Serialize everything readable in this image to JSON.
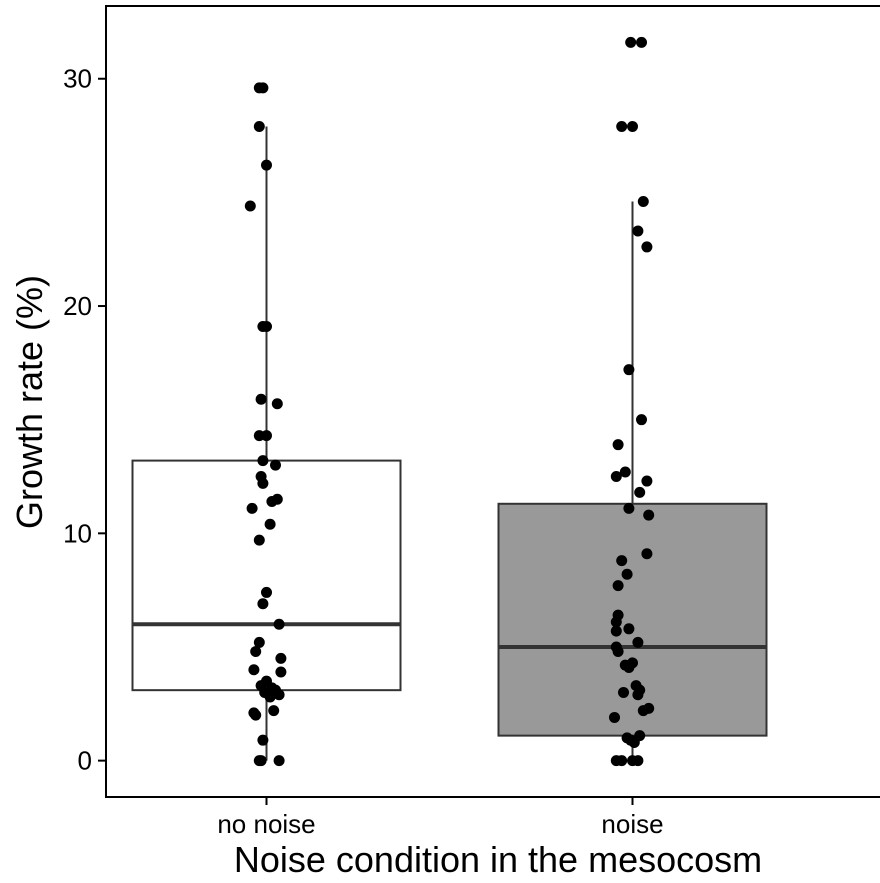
{
  "chart_data": {
    "type": "boxplot",
    "xlabel": "Noise condition in the mesocosm",
    "ylabel": "Growth rate (%)",
    "ylim": [
      -1.6,
      33.2
    ],
    "yticks": [
      0,
      10,
      20,
      30
    ],
    "ytick_labels": [
      "0",
      "10",
      "20",
      "30"
    ],
    "grid": false,
    "categories": [
      "no noise",
      "noise"
    ],
    "colors": {
      "no_noise_box_fill": "#ffffff",
      "noise_box_fill": "#999999",
      "box_stroke": "#333333",
      "point": "#000000"
    },
    "boxes": [
      {
        "category": "no noise",
        "whisker_low": 0.0,
        "q1": 3.1,
        "median": 6.0,
        "q3": 13.2,
        "whisker_high": 27.9
      },
      {
        "category": "noise",
        "whisker_low": 0.0,
        "q1": 1.1,
        "median": 5.0,
        "q3": 11.3,
        "whisker_high": 24.6
      }
    ],
    "points": [
      [
        29.6,
        29.6,
        27.9,
        26.2,
        24.4,
        19.1,
        19.1,
        15.9,
        15.7,
        14.3,
        14.3,
        13.2,
        13.0,
        12.5,
        12.2,
        11.5,
        11.4,
        11.1,
        10.4,
        9.7,
        7.4,
        6.9,
        6.0,
        5.2,
        4.8,
        4.5,
        4.0,
        3.9,
        3.5,
        3.3,
        3.2,
        3.1,
        3.0,
        2.9,
        2.8,
        2.2,
        2.1,
        2.0,
        0.9,
        0.0,
        0.0,
        0.0
      ],
      [
        31.6,
        31.6,
        27.9,
        27.9,
        24.6,
        23.3,
        22.6,
        17.2,
        15.0,
        13.9,
        12.7,
        12.5,
        12.3,
        11.8,
        11.1,
        10.8,
        9.1,
        8.8,
        8.2,
        7.7,
        6.4,
        6.1,
        5.8,
        5.7,
        5.2,
        5.0,
        4.8,
        4.3,
        4.2,
        4.1,
        3.3,
        3.1,
        3.0,
        2.9,
        2.3,
        2.2,
        1.9,
        1.1,
        1.0,
        0.9,
        0.8,
        0.0,
        0.0,
        0.0,
        0.0
      ]
    ],
    "point_offsets": [
      [
        -0.04,
        -0.02,
        -0.04,
        0.0,
        -0.09,
        -0.02,
        0.0,
        -0.03,
        0.06,
        -0.04,
        0.0,
        -0.02,
        0.05,
        -0.03,
        -0.02,
        0.06,
        0.03,
        -0.08,
        0.02,
        -0.04,
        0.0,
        -0.02,
        0.07,
        -0.04,
        -0.06,
        0.08,
        -0.07,
        0.08,
        0.0,
        -0.03,
        0.03,
        0.05,
        -0.01,
        0.07,
        0.02,
        0.04,
        -0.07,
        -0.06,
        -0.02,
        -0.04,
        -0.03,
        0.07
      ],
      [
        -0.01,
        0.05,
        -0.06,
        0.0,
        0.06,
        0.03,
        0.08,
        -0.02,
        0.05,
        -0.08,
        -0.04,
        -0.09,
        0.08,
        0.04,
        -0.02,
        0.09,
        0.08,
        -0.06,
        -0.03,
        -0.08,
        -0.08,
        -0.09,
        -0.02,
        -0.09,
        0.03,
        -0.09,
        -0.08,
        0.0,
        -0.04,
        -0.02,
        0.02,
        0.04,
        -0.05,
        0.03,
        0.09,
        0.06,
        -0.1,
        0.04,
        -0.03,
        -0.01,
        0.01,
        -0.09,
        -0.06,
        0.0,
        0.03
      ]
    ]
  }
}
